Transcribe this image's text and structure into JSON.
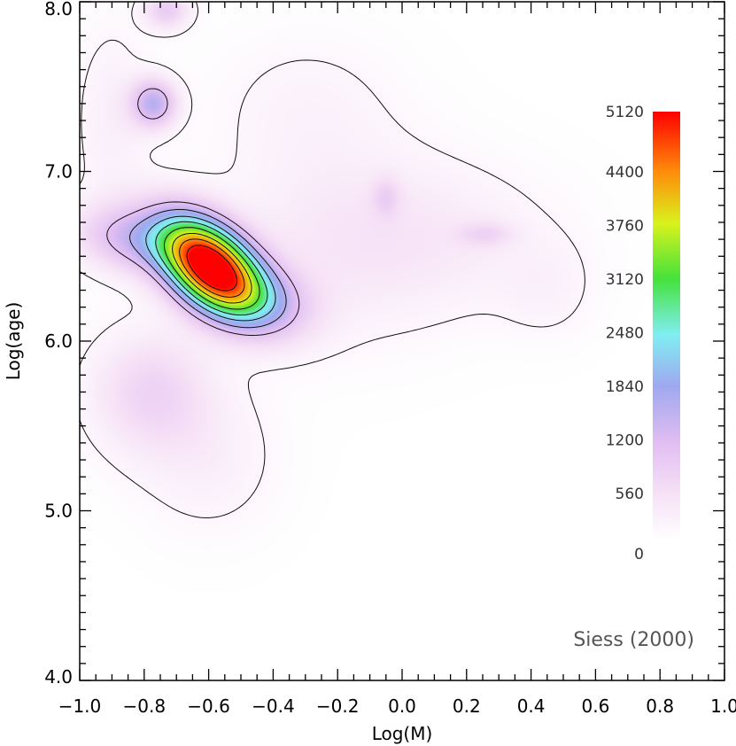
{
  "chart_data": {
    "type": "heatmap",
    "title": "",
    "xlabel": "Log(M)",
    "ylabel": "Log(age)",
    "xlim": [
      -1.0,
      1.0
    ],
    "ylim": [
      4.0,
      8.0
    ],
    "x_ticks": [
      "-1.0",
      "-0.8",
      "-0.6",
      "-0.4",
      "-0.2",
      "0.0",
      "0.2",
      "0.4",
      "0.6",
      "0.8",
      "1.0"
    ],
    "y_ticks": [
      "4.0",
      "5.0",
      "6.0",
      "7.0",
      "8.0"
    ],
    "annotation": "Siess (2000)",
    "colorbar": {
      "min": 0,
      "max": 5120,
      "labels": [
        "0",
        "560",
        "1200",
        "1840",
        "2480",
        "3120",
        "3760",
        "4400",
        "5120"
      ],
      "values": [
        0,
        560,
        1200,
        1840,
        2480,
        3120,
        3760,
        4400,
        5120
      ]
    },
    "density_components": [
      {
        "x": -0.6,
        "y": 6.45,
        "sx": 0.11,
        "sy": 0.2,
        "rho": -0.45,
        "amplitude": 5300
      },
      {
        "x": -0.85,
        "y": 6.6,
        "sx": 0.12,
        "sy": 0.14,
        "rho": -0.2,
        "amplitude": 1100
      },
      {
        "x": -0.45,
        "y": 6.25,
        "sx": 0.12,
        "sy": 0.16,
        "rho": -0.3,
        "amplitude": 1200
      },
      {
        "x": -0.77,
        "y": 7.4,
        "sx": 0.05,
        "sy": 0.1,
        "rho": 0.0,
        "amplitude": 1500
      },
      {
        "x": -0.78,
        "y": 5.7,
        "sx": 0.13,
        "sy": 0.25,
        "rho": 0.0,
        "amplitude": 750
      },
      {
        "x": -0.73,
        "y": 7.95,
        "sx": 0.05,
        "sy": 0.08,
        "rho": 0.0,
        "amplitude": 900
      },
      {
        "x": -0.2,
        "y": 6.6,
        "sx": 0.25,
        "sy": 0.4,
        "rho": 0.0,
        "amplitude": 380
      },
      {
        "x": 0.15,
        "y": 6.6,
        "sx": 0.25,
        "sy": 0.3,
        "rho": 0.0,
        "amplitude": 280
      },
      {
        "x": 0.26,
        "y": 6.63,
        "sx": 0.06,
        "sy": 0.05,
        "rho": 0.0,
        "amplitude": 500
      },
      {
        "x": -0.05,
        "y": 6.85,
        "sx": 0.03,
        "sy": 0.08,
        "rho": 0.0,
        "amplitude": 500
      },
      {
        "x": -0.6,
        "y": 5.3,
        "sx": 0.15,
        "sy": 0.3,
        "rho": 0.0,
        "amplitude": 280
      },
      {
        "x": -0.9,
        "y": 7.3,
        "sx": 0.08,
        "sy": 0.4,
        "rho": 0.0,
        "amplitude": 300
      },
      {
        "x": 0.45,
        "y": 6.3,
        "sx": 0.1,
        "sy": 0.2,
        "rho": 0.0,
        "amplitude": 200
      },
      {
        "x": -0.3,
        "y": 7.4,
        "sx": 0.2,
        "sy": 0.3,
        "rho": 0.0,
        "amplitude": 200
      }
    ],
    "contour_levels": [
      150,
      1100,
      1600,
      2150,
      2650,
      3200,
      3800,
      4350,
      4900
    ]
  }
}
